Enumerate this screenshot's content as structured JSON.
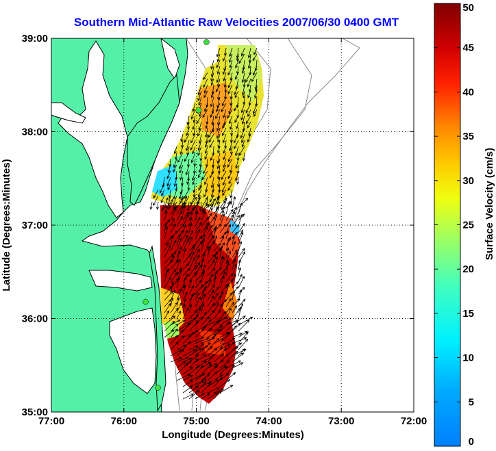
{
  "title": "Southern Mid-Atlantic Raw Velocities 2007/06/30 0400 GMT",
  "map": {
    "xlabel": "Longitude (Degrees:Minutes)",
    "ylabel": "Latitude (Degrees:Minutes)",
    "xlim": [
      -77,
      -72
    ],
    "ylim": [
      35,
      39
    ],
    "xticks": [
      "77:00",
      "76:00",
      "75:00",
      "74:00",
      "73:00",
      "72:00"
    ],
    "yticks": [
      "35:00",
      "36:00",
      "37:00",
      "38:00",
      "39:00"
    ],
    "grid": "dotted",
    "land_color": "#55f0a8",
    "arrow_color": "#000000",
    "stations": [
      {
        "lon": -74.86,
        "lat": 38.96
      },
      {
        "lon": -74.97,
        "lat": 38.23
      },
      {
        "lon": -75.7,
        "lat": 36.18
      },
      {
        "lon": -75.53,
        "lat": 35.26
      }
    ]
  },
  "colorbar": {
    "label": "Surface Velocity (cm/s)",
    "min": 0,
    "max": 50,
    "ticks": [
      "0",
      "5",
      "10",
      "15",
      "20",
      "25",
      "30",
      "35",
      "40",
      "45",
      "50"
    ],
    "colormap": "jet"
  }
}
